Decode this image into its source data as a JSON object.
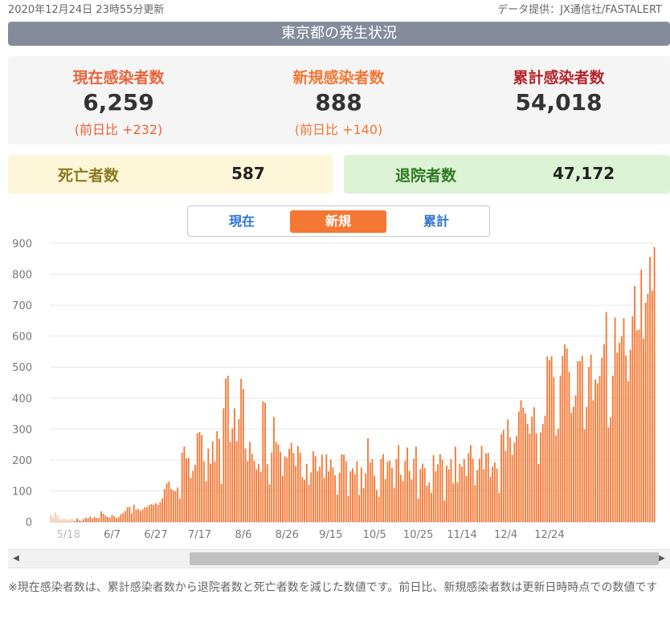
{
  "header": {
    "updated": "2020年12月24日 23時55分更新",
    "source": "データ提供：JX通信社/FASTALERT",
    "title": "東京都の発生状況"
  },
  "stats": {
    "current": {
      "label": "現在感染者数",
      "value": "6,259",
      "diff": "(前日比 +232)"
    },
    "new": {
      "label": "新規感染者数",
      "value": "888",
      "diff": "(前日比 +140)"
    },
    "total": {
      "label": "累計感染者数",
      "value": "54,018"
    },
    "deaths": {
      "label": "死亡者数",
      "value": "587"
    },
    "recovered": {
      "label": "退院者数",
      "value": "47,172"
    }
  },
  "tabs": {
    "current": "現在",
    "new": "新規",
    "total": "累計",
    "active": "new"
  },
  "colors": {
    "bar": "#f47733",
    "bar_faded": "#f9c6a8",
    "current_label": "#e8633a",
    "new_label": "#f47733",
    "total_label": "#b5252c",
    "death_label": "#8c7a1f",
    "recovered_label": "#2e7a23"
  },
  "chart_data": {
    "type": "bar",
    "title": "",
    "xlabel": "",
    "ylabel": "",
    "ylim": [
      0,
      900
    ],
    "yticks": [
      0,
      100,
      200,
      300,
      400,
      500,
      600,
      700,
      800,
      900
    ],
    "start_date": "2020-05-10",
    "xtick_labels": [
      {
        "date": "2020-05-18",
        "label": "5/18",
        "faded": true
      },
      {
        "date": "2020-06-07",
        "label": "6/7"
      },
      {
        "date": "2020-06-27",
        "label": "6/27"
      },
      {
        "date": "2020-07-17",
        "label": "7/17"
      },
      {
        "date": "2020-08-06",
        "label": "8/6"
      },
      {
        "date": "2020-08-26",
        "label": "8/26"
      },
      {
        "date": "2020-09-15",
        "label": "9/15"
      },
      {
        "date": "2020-10-05",
        "label": "10/5"
      },
      {
        "date": "2020-10-25",
        "label": "10/25"
      },
      {
        "date": "2020-11-14",
        "label": "11/14"
      },
      {
        "date": "2020-12-04",
        "label": "12/4"
      },
      {
        "date": "2020-12-24",
        "label": "12/24"
      }
    ],
    "faded_until": "2020-05-20",
    "values": [
      22,
      15,
      30,
      20,
      10,
      8,
      12,
      9,
      6,
      10,
      8,
      3,
      11,
      5,
      3,
      9,
      14,
      12,
      17,
      10,
      15,
      13,
      12,
      34,
      26,
      20,
      16,
      14,
      22,
      18,
      12,
      16,
      24,
      28,
      35,
      47,
      48,
      27,
      55,
      40,
      41,
      35,
      40,
      47,
      48,
      54,
      57,
      55,
      60,
      55,
      64,
      76,
      106,
      124,
      130,
      107,
      102,
      100,
      111,
      75,
      224,
      243,
      206,
      206,
      143,
      165,
      184,
      286,
      290,
      280,
      196,
      131,
      237,
      188,
      260,
      195,
      293,
      268,
      123,
      367,
      463,
      472,
      258,
      302,
      367,
      260,
      332,
      462,
      429,
      237,
      196,
      258,
      220,
      197,
      170,
      188,
      161,
      389,
      385,
      186,
      121,
      224,
      339,
      258,
      250,
      226,
      148,
      212,
      207,
      236,
      255,
      222,
      181,
      245,
      224,
      144,
      136,
      187,
      120,
      160,
      228,
      212,
      164,
      178,
      217,
      142,
      218,
      163,
      201,
      175,
      150,
      88,
      158,
      218,
      217,
      196,
      83,
      163,
      173,
      154,
      195,
      87,
      175,
      109,
      156,
      270,
      192,
      203,
      149,
      103,
      80,
      203,
      218,
      139,
      194,
      198,
      174,
      110,
      203,
      248,
      152,
      131,
      197,
      240,
      165,
      137,
      203,
      243,
      75,
      170,
      188,
      174,
      116,
      127,
      94,
      215,
      163,
      186,
      219,
      201,
      69,
      182,
      170,
      202,
      124,
      243,
      128,
      187,
      178,
      203,
      149,
      222,
      248,
      204,
      119,
      167,
      204,
      245,
      170,
      221,
      223,
      146,
      179,
      192,
      172,
      94,
      283,
      297,
      229,
      331,
      273,
      216,
      256,
      278,
      356,
      393,
      369,
      350,
      317,
      285,
      340,
      370,
      286,
      187,
      289,
      316,
      343,
      534,
      522,
      535,
      468,
      279,
      301,
      472,
      536,
      573,
      560,
      484,
      352,
      372,
      409,
      519,
      519,
      536,
      299,
      371,
      500,
      540,
      393,
      460,
      448,
      471,
      530,
      574,
      678,
      305,
      338,
      472,
      660,
      546,
      578,
      599,
      658,
      538,
      454,
      556,
      664,
      762,
      619,
      621,
      815,
      592,
      708,
      736,
      856,
      748,
      888
    ]
  },
  "footnote": "※現在感染者数は、累計感染者数から退院者数と死亡者数を減じた数値です。前日比、新規感染者数は更新日時時点での数値です"
}
